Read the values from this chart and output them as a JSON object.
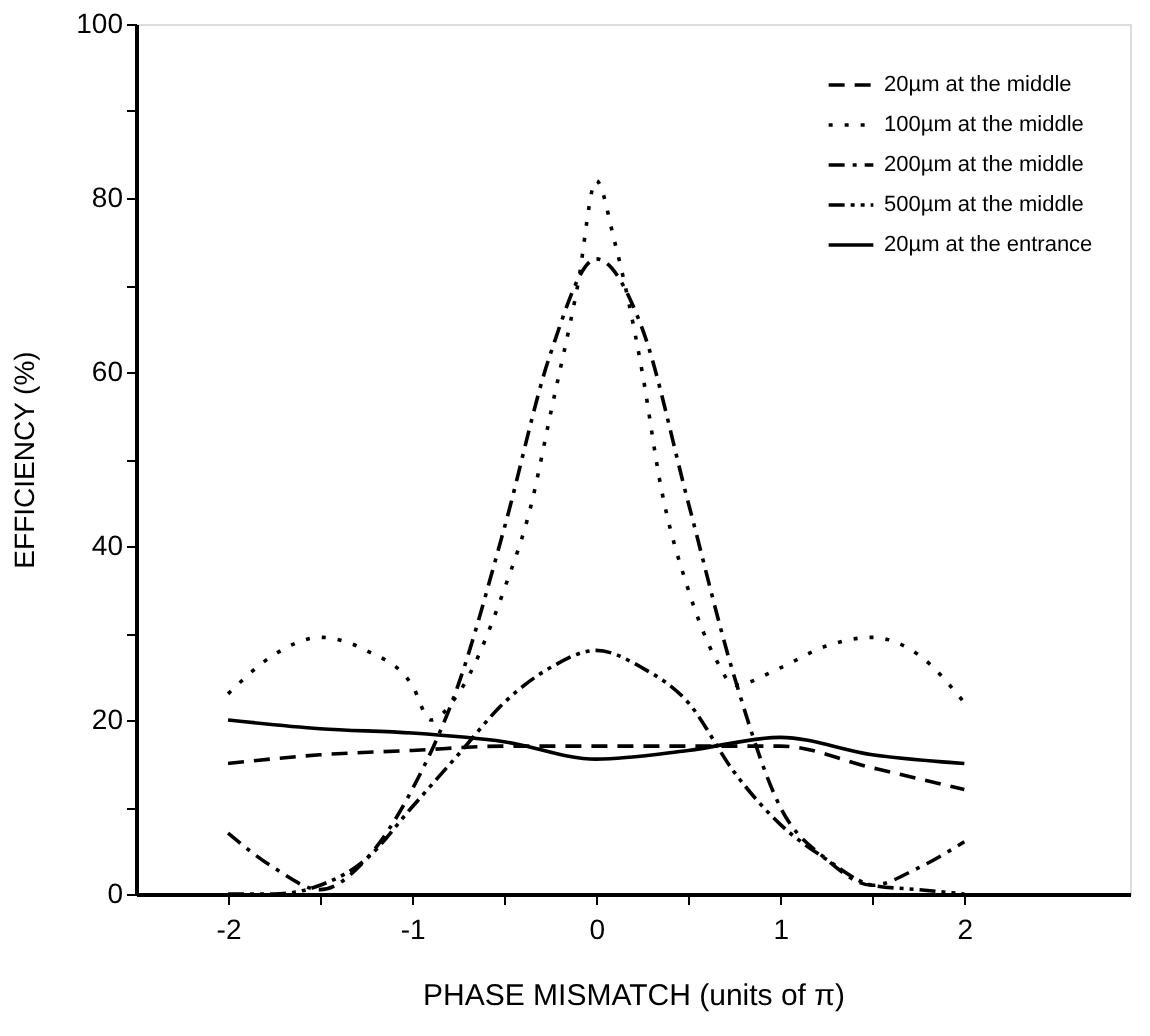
{
  "chart_data": {
    "type": "line",
    "xlabel": "PHASE MISMATCH (units of π)",
    "ylabel": "EFFICIENCY (%)",
    "xlim": [
      -2.5,
      2.9
    ],
    "ylim": [
      0,
      100
    ],
    "xticks": [
      -2,
      {
        "value": -1.5,
        "label": null
      },
      -1,
      {
        "value": -0.5,
        "label": null
      },
      0,
      {
        "value": 0.5,
        "label": null
      },
      1,
      {
        "value": 1.5,
        "label": null
      },
      2
    ],
    "yticks": [
      0,
      {
        "value": 10,
        "label": null
      },
      20,
      {
        "value": 30,
        "label": null
      },
      40,
      {
        "value": 50,
        "label": null
      },
      60,
      {
        "value": 70,
        "label": null
      },
      80,
      {
        "value": 90,
        "label": null
      },
      100
    ],
    "grid": false,
    "legend": "top right",
    "marker": "none",
    "series": [
      {
        "name": "20µm at the middle",
        "color": "#000000",
        "line_style": "dashed",
        "x": [
          -2,
          -1.5,
          -1,
          -0.5,
          0,
          0.5,
          1,
          1.5,
          2
        ],
        "values": [
          15,
          16,
          16.5,
          17,
          17,
          17,
          17,
          14.5,
          12
        ]
      },
      {
        "name": "100µm at the middle",
        "color": "#000000",
        "line_style": "dotted",
        "x": [
          -2,
          -1.75,
          -1.5,
          -1.25,
          -1,
          -0.9,
          -0.75,
          -0.5,
          -0.35,
          -0.25,
          -0.1,
          0,
          0.1,
          0.25,
          0.35,
          0.5,
          0.65,
          0.75,
          1,
          1.25,
          1.5,
          1.75,
          2
        ],
        "values": [
          23,
          27.5,
          29.5,
          28,
          24,
          20,
          23,
          35,
          45,
          55,
          70,
          82,
          75,
          60,
          47,
          35,
          27,
          24,
          26,
          28.5,
          29.5,
          27.5,
          22
        ]
      },
      {
        "name": "200µm at the middle",
        "color": "#000000",
        "line_style": "dashdot",
        "x": [
          -2,
          -1.75,
          -1.5,
          -1.25,
          -1,
          -0.75,
          -0.5,
          -0.25,
          0,
          0.25,
          0.5,
          0.75,
          1,
          1.25,
          1.5,
          1.75,
          2
        ],
        "values": [
          7,
          3,
          0.5,
          4,
          12,
          24,
          42,
          62,
          73,
          65,
          45,
          25,
          10,
          4,
          1,
          3,
          6
        ]
      },
      {
        "name": "500µm at the middle",
        "color": "#000000",
        "line_style": "dashdotdot",
        "x": [
          -2,
          -1.75,
          -1.5,
          -1.25,
          -1,
          -0.75,
          -0.5,
          -0.25,
          0,
          0.25,
          0.5,
          0.75,
          1,
          1.25,
          1.5,
          1.75,
          2
        ],
        "values": [
          0,
          0,
          1,
          4,
          10,
          16,
          22,
          26,
          28,
          26,
          22,
          14,
          8,
          4,
          1,
          0.5,
          0
        ]
      },
      {
        "name": "20µm at the entrance",
        "color": "#000000",
        "line_style": "solid",
        "x": [
          -2,
          -1.5,
          -1,
          -0.5,
          0,
          0.5,
          1,
          1.5,
          2
        ],
        "values": [
          20,
          19,
          18.5,
          17.5,
          15.5,
          16.5,
          18,
          16,
          15
        ]
      }
    ]
  }
}
